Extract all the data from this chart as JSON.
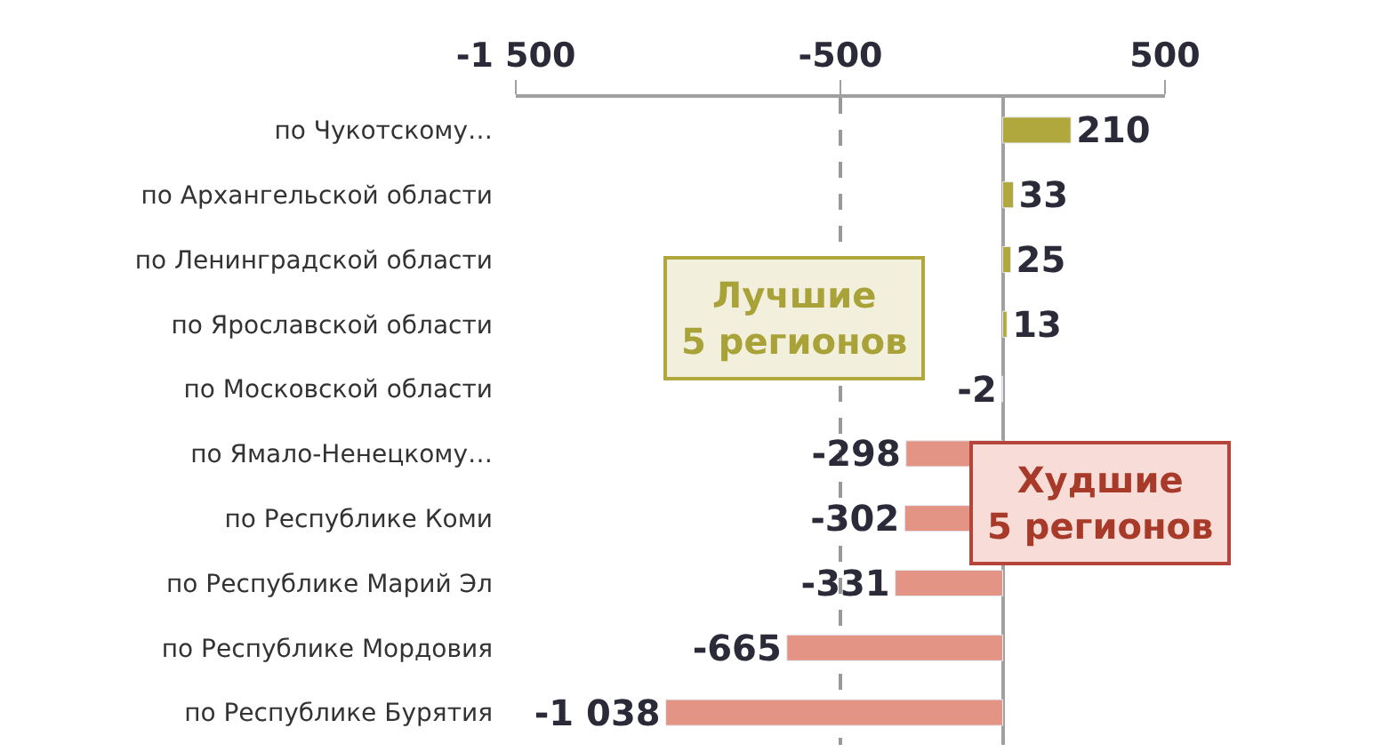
{
  "chart_data": {
    "type": "bar",
    "orientation": "horizontal",
    "categories": [
      "по Чукотскому…",
      "по Архангельской области",
      "по Ленинградской области",
      "по Ярославской области",
      "по Московской области",
      "по Ямало-Ненецкому…",
      "по Республике Коми",
      "по Республике Марий Эл",
      "по Республике Мордовия",
      "по Республике Бурятия"
    ],
    "values": [
      210,
      33,
      25,
      13,
      -2,
      -298,
      -302,
      -331,
      -665,
      -1038
    ],
    "value_labels": [
      "210",
      "33",
      "25",
      "13",
      "-2",
      "-298",
      "-302",
      "-331",
      "-665",
      "-1 038"
    ],
    "colors": [
      "#b0a83c",
      "#b0a83c",
      "#b0a83c",
      "#b0a83c",
      "#e49484",
      "#e49484",
      "#e49484",
      "#e49484",
      "#e49484",
      "#e49484"
    ],
    "xlim": [
      -1500,
      500
    ],
    "xticks": [
      {
        "value": -1500,
        "label": "-1 500"
      },
      -500,
      500
    ],
    "grid": "x",
    "annotations": [
      "Лучшие\n5 регионов",
      "Худшие\n5 регионов"
    ]
  }
}
